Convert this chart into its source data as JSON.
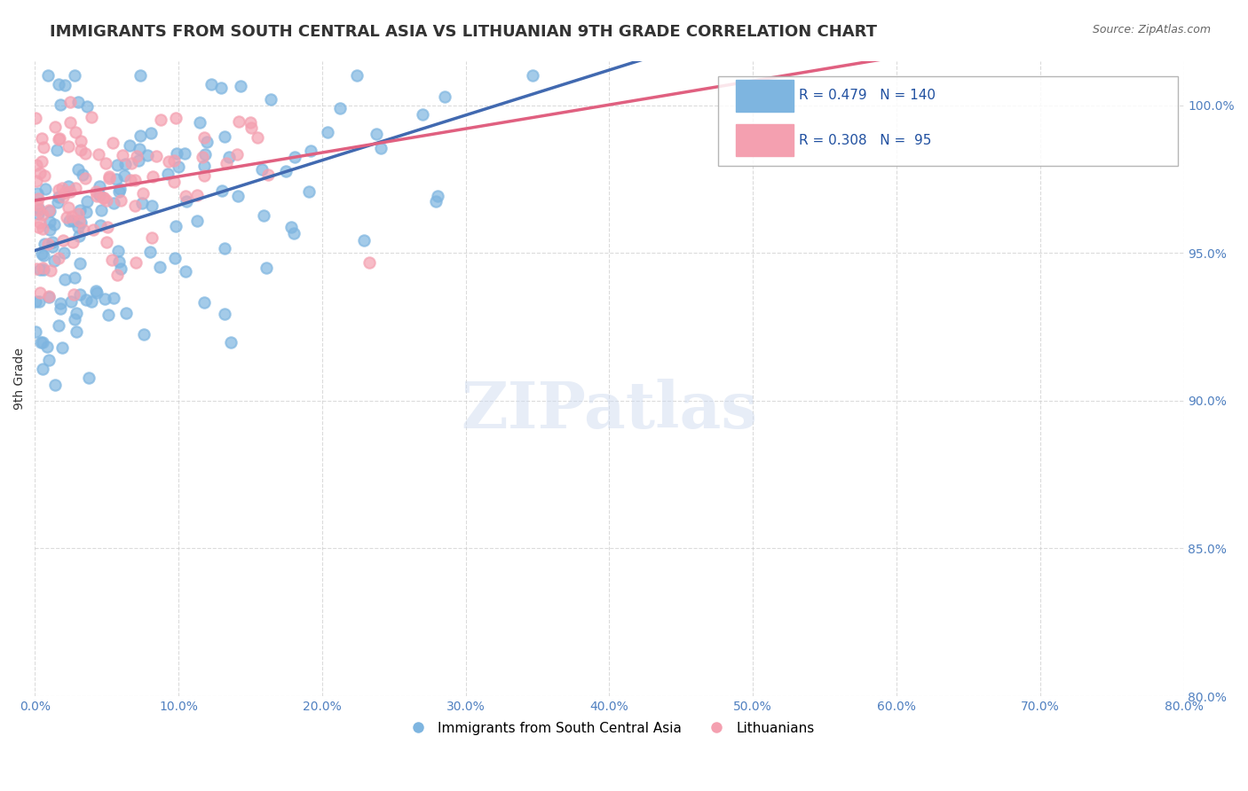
{
  "title": "IMMIGRANTS FROM SOUTH CENTRAL ASIA VS LITHUANIAN 9TH GRADE CORRELATION CHART",
  "source_text": "Source: ZipAtlas.com",
  "xlabel": "",
  "ylabel": "9th Grade",
  "legend_label_blue": "Immigrants from South Central Asia",
  "legend_label_pink": "Lithuanians",
  "R_blue": 0.479,
  "N_blue": 140,
  "R_pink": 0.308,
  "N_pink": 95,
  "blue_color": "#7EB5E0",
  "pink_color": "#F4A0B0",
  "line_blue_color": "#4169B0",
  "line_pink_color": "#E06080",
  "xlim": [
    0.0,
    80.0
  ],
  "ylim": [
    80.0,
    101.5
  ],
  "x_ticks": [
    0.0,
    10.0,
    20.0,
    30.0,
    40.0,
    50.0,
    60.0,
    70.0,
    80.0
  ],
  "y_ticks": [
    80.0,
    85.0,
    90.0,
    95.0,
    100.0
  ],
  "watermark": "ZIPatlas",
  "background_color": "#ffffff",
  "title_fontsize": 13,
  "axis_label_fontsize": 10
}
